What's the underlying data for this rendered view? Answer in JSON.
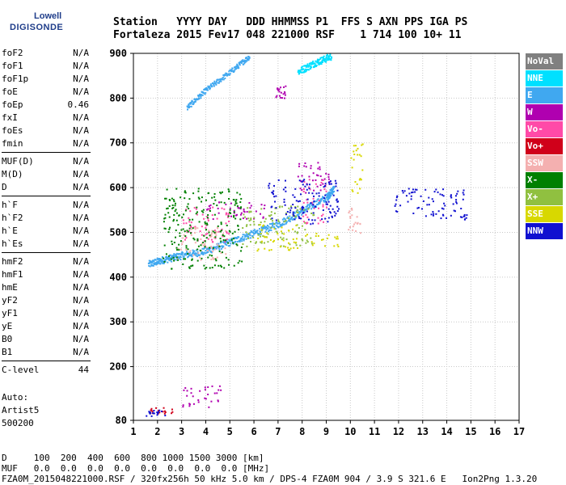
{
  "logo": {
    "line1": "Lowell",
    "line2": "DIGISONDE"
  },
  "header": {
    "labels": "Station   YYYY DAY   DDD HHMMSS P1  FFS S AXN PPS IGA PS",
    "values": "Fortaleza 2015 Fev17 048 221000 RSF    1 714 100 10+ 11"
  },
  "params_group1": [
    {
      "name": "foF2",
      "value": "N/A"
    },
    {
      "name": "foF1",
      "value": "N/A"
    },
    {
      "name": "foF1p",
      "value": "N/A"
    },
    {
      "name": "foE",
      "value": "N/A"
    },
    {
      "name": "foEp",
      "value": "0.46"
    },
    {
      "name": "fxI",
      "value": "N/A"
    },
    {
      "name": "foEs",
      "value": "N/A"
    },
    {
      "name": "fmin",
      "value": "N/A"
    }
  ],
  "params_group2": [
    {
      "name": "MUF(D)",
      "value": "N/A"
    },
    {
      "name": "M(D)",
      "value": "N/A"
    },
    {
      "name": "D",
      "value": "N/A"
    }
  ],
  "params_group3": [
    {
      "name": "h`F",
      "value": "N/A"
    },
    {
      "name": "h`F2",
      "value": "N/A"
    },
    {
      "name": "h`E",
      "value": "N/A"
    },
    {
      "name": "h`Es",
      "value": "N/A"
    }
  ],
  "params_group4": [
    {
      "name": "hmF2",
      "value": "N/A"
    },
    {
      "name": "hmF1",
      "value": "N/A"
    },
    {
      "name": "hmE",
      "value": "N/A"
    },
    {
      "name": "yF2",
      "value": "N/A"
    },
    {
      "name": "yF1",
      "value": "N/A"
    },
    {
      "name": "yE",
      "value": "N/A"
    },
    {
      "name": "B0",
      "value": "N/A"
    },
    {
      "name": "B1",
      "value": "N/A"
    }
  ],
  "clevel": {
    "name": "C-level",
    "value": "44"
  },
  "auto": {
    "line1": "Auto:",
    "line2": "Artist5",
    "line3": "500200"
  },
  "legend": [
    {
      "label": "NoVal",
      "color": "#808080"
    },
    {
      "label": "NNE",
      "color": "#00e0ff"
    },
    {
      "label": "E",
      "color": "#40a8f0"
    },
    {
      "label": "W",
      "color": "#b000b0"
    },
    {
      "label": "Vo-",
      "color": "#ff4aa8"
    },
    {
      "label": "Vo+",
      "color": "#d0001a"
    },
    {
      "label": "SSW",
      "color": "#f4b0b0"
    },
    {
      "label": "X-",
      "color": "#008000"
    },
    {
      "label": "X+",
      "color": "#90c040"
    },
    {
      "label": "SSE",
      "color": "#d8d800"
    },
    {
      "label": "NNW",
      "color": "#1010d0"
    }
  ],
  "bottom": {
    "line1": "D     100  200  400  600  800 1000 1500 3000 [km]",
    "line2": "MUF   0.0  0.0  0.0  0.0  0.0  0.0  0.0  0.0 [MHz]",
    "line3": "FZA0M_2015048221000.RSF / 320fx256h 50 kHz 5.0 km / DPS-4 FZA0M 904 / 3.9 S 321.6 E   Ion2Png 1.3.20"
  },
  "chart_data": {
    "type": "scatter",
    "xlim": [
      1,
      17
    ],
    "ylim": [
      80,
      900
    ],
    "x_ticks": [
      1,
      2,
      3,
      4,
      5,
      6,
      7,
      8,
      9,
      10,
      11,
      12,
      13,
      14,
      15,
      16,
      17
    ],
    "y_ticks": [
      80,
      200,
      300,
      400,
      500,
      600,
      700,
      800,
      900
    ],
    "grid": true,
    "clusters": [
      {
        "name": "E",
        "color": "#40a8f0",
        "shape": "line",
        "x": [
          1.6,
          2.2,
          3.0,
          4.0,
          5.0,
          6.0,
          7.0,
          8.0,
          9.0,
          9.3
        ],
        "y": [
          430,
          440,
          450,
          460,
          480,
          500,
          520,
          550,
          580,
          600
        ],
        "spread": 8
      },
      {
        "name": "E",
        "color": "#40a8f0",
        "shape": "line",
        "x": [
          3.2,
          4.0,
          5.0,
          5.8
        ],
        "y": [
          780,
          820,
          860,
          895
        ],
        "spread": 6
      },
      {
        "name": "NNE",
        "color": "#00e0ff",
        "shape": "line",
        "x": [
          7.8,
          8.5,
          9.2
        ],
        "y": [
          860,
          880,
          895
        ],
        "spread": 8
      },
      {
        "name": "W",
        "color": "#b000b0",
        "shape": "block",
        "x": [
          3.0,
          4.6
        ],
        "y": [
          110,
          160
        ]
      },
      {
        "name": "W",
        "color": "#b000b0",
        "shape": "block",
        "x": [
          4.0,
          6.5
        ],
        "y": [
          530,
          570
        ]
      },
      {
        "name": "W",
        "color": "#b000b0",
        "shape": "block",
        "x": [
          7.8,
          9.2
        ],
        "y": [
          590,
          660
        ]
      },
      {
        "name": "W",
        "color": "#b000b0",
        "shape": "block",
        "x": [
          6.8,
          7.3
        ],
        "y": [
          800,
          830
        ]
      },
      {
        "name": "Vo-",
        "color": "#ff4aa8",
        "shape": "block",
        "x": [
          3.0,
          5.0
        ],
        "y": [
          480,
          560
        ]
      },
      {
        "name": "Vo-",
        "color": "#ff4aa8",
        "shape": "block",
        "x": [
          8.0,
          9.0
        ],
        "y": [
          520,
          620
        ]
      },
      {
        "name": "Vo+",
        "color": "#d0001a",
        "shape": "block",
        "x": [
          1.6,
          2.6
        ],
        "y": [
          95,
          110
        ]
      },
      {
        "name": "SSW",
        "color": "#f4b0b0",
        "shape": "block",
        "x": [
          2.8,
          4.8
        ],
        "y": [
          440,
          520
        ]
      },
      {
        "name": "SSW",
        "color": "#f4b0b0",
        "shape": "block",
        "x": [
          9.8,
          10.4
        ],
        "y": [
          500,
          560
        ]
      },
      {
        "name": "X-",
        "color": "#008000",
        "shape": "block",
        "x": [
          2.2,
          5.5
        ],
        "y": [
          420,
          600
        ]
      },
      {
        "name": "X+",
        "color": "#90c040",
        "shape": "block",
        "x": [
          5.5,
          8.5
        ],
        "y": [
          470,
          560
        ]
      },
      {
        "name": "SSE",
        "color": "#d8d800",
        "shape": "block",
        "x": [
          6.0,
          7.8
        ],
        "y": [
          460,
          520
        ]
      },
      {
        "name": "SSE",
        "color": "#d8d800",
        "shape": "block",
        "x": [
          8.0,
          9.5
        ],
        "y": [
          470,
          500
        ]
      },
      {
        "name": "SSE",
        "color": "#d8d800",
        "shape": "block",
        "x": [
          10.0,
          10.5
        ],
        "y": [
          580,
          700
        ]
      },
      {
        "name": "NNW",
        "color": "#1010d0",
        "shape": "block",
        "x": [
          6.5,
          9.5
        ],
        "y": [
          520,
          620
        ]
      },
      {
        "name": "NNW",
        "color": "#1010d0",
        "shape": "block",
        "x": [
          11.8,
          14.8
        ],
        "y": [
          530,
          600
        ]
      },
      {
        "name": "NNW",
        "color": "#1010d0",
        "shape": "block",
        "x": [
          1.5,
          2.3
        ],
        "y": [
          90,
          105
        ]
      }
    ]
  }
}
